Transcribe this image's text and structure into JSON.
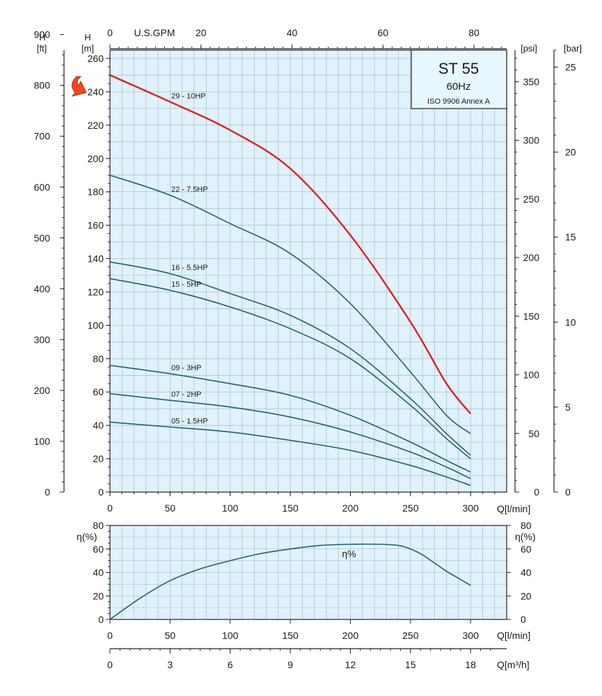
{
  "chart_data": [
    {
      "type": "line",
      "id": "head-curves",
      "axes": {
        "x": {
          "label": "Q[l/min]",
          "range": [
            0,
            330
          ],
          "ticks": [
            0,
            50,
            100,
            150,
            200,
            250,
            300
          ]
        },
        "y_m": {
          "label": "[m]",
          "title": "H",
          "range": [
            0,
            265
          ],
          "ticks": [
            0,
            20,
            40,
            60,
            80,
            100,
            120,
            140,
            160,
            180,
            200,
            220,
            240,
            260
          ]
        },
        "y_ft": {
          "label": "[ft]",
          "title": "H",
          "range": [
            0,
            869.4
          ],
          "ticks": [
            0,
            100,
            200,
            300,
            400,
            500,
            600,
            700,
            800,
            900
          ]
        },
        "x_gpm": {
          "label": "U.S.GPM",
          "ticks": [
            0,
            20,
            40,
            60,
            80
          ]
        },
        "y_psi": {
          "label": "[psi]",
          "range": [
            0,
            376.9
          ],
          "ticks": [
            0,
            50,
            100,
            150,
            200,
            250,
            300,
            350
          ]
        },
        "y_bar": {
          "label": "[bar]",
          "range": [
            0,
            26
          ],
          "ticks": [
            0,
            5,
            10,
            15,
            20,
            25
          ]
        }
      },
      "infobox": {
        "model": "ST 55",
        "freq": "60Hz",
        "standard": "ISO 9906 Annex A"
      },
      "series": [
        {
          "name": "29 - 10HP",
          "highlight": true,
          "x": [
            0,
            50,
            100,
            150,
            200,
            250,
            280,
            300
          ],
          "y": [
            250,
            234,
            217,
            194,
            154,
            102,
            65,
            47
          ]
        },
        {
          "name": "22 - 7.5HP",
          "x": [
            0,
            50,
            100,
            150,
            200,
            250,
            280,
            300
          ],
          "y": [
            190,
            178,
            161,
            143,
            113,
            72,
            46,
            35
          ]
        },
        {
          "name": "16 - 5.5HP",
          "x": [
            0,
            50,
            100,
            150,
            200,
            250,
            280,
            300
          ],
          "y": [
            138,
            131,
            119,
            106,
            86,
            56,
            35,
            22
          ]
        },
        {
          "name": "15 - 5HP",
          "x": [
            0,
            50,
            100,
            150,
            200,
            250,
            280,
            300
          ],
          "y": [
            128,
            121,
            111,
            98,
            80,
            52,
            32,
            20
          ]
        },
        {
          "name": "09 - 3HP",
          "x": [
            0,
            50,
            100,
            150,
            200,
            250,
            280,
            300
          ],
          "y": [
            76,
            71,
            65,
            58,
            46,
            30,
            19,
            12
          ]
        },
        {
          "name": "07 - 2HP",
          "x": [
            0,
            50,
            100,
            150,
            200,
            250,
            280,
            300
          ],
          "y": [
            59,
            55,
            51,
            45,
            36,
            24,
            15,
            8
          ]
        },
        {
          "name": "05 - 1.5HP",
          "x": [
            0,
            50,
            100,
            150,
            200,
            250,
            280,
            300
          ],
          "y": [
            42,
            39,
            36,
            31,
            25,
            16,
            9,
            4
          ]
        }
      ]
    },
    {
      "type": "line",
      "id": "efficiency",
      "axes": {
        "x": {
          "label": "Q[l/min]",
          "range": [
            0,
            330
          ],
          "ticks": [
            0,
            50,
            100,
            150,
            200,
            250,
            300
          ]
        },
        "y": {
          "label": "η(%)",
          "range": [
            0,
            80
          ],
          "ticks": [
            0,
            20,
            40,
            60,
            80
          ]
        },
        "x_m3h": {
          "label": "Q[m³/h]",
          "ticks": [
            0,
            3,
            6,
            9,
            12,
            15,
            18
          ]
        }
      },
      "series": [
        {
          "name": "η%",
          "x": [
            0,
            25,
            50,
            75,
            100,
            125,
            150,
            175,
            200,
            225,
            240,
            250,
            260,
            270,
            280,
            290,
            300
          ],
          "y": [
            0,
            18,
            33,
            43,
            50,
            56,
            60,
            63,
            64,
            64,
            63,
            60,
            55,
            48,
            41,
            35,
            29
          ]
        }
      ]
    }
  ]
}
